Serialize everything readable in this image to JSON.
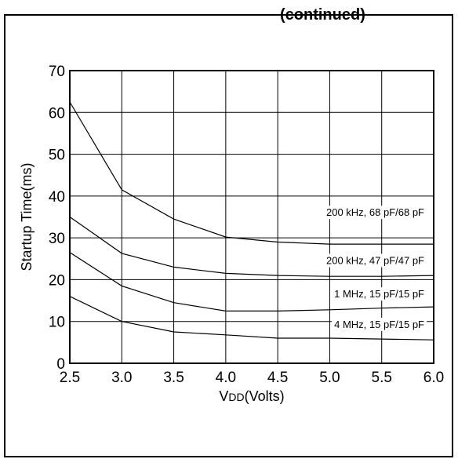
{
  "header": {
    "partial_text": "(continued)"
  },
  "chart_data": {
    "type": "line",
    "title": "",
    "xlabel": "VDD(Volts)",
    "xlabel_main": "V",
    "xlabel_sub": "DD",
    "xlabel_rest": "(Volts)",
    "ylabel": "Startup Time(ms)",
    "xlim": [
      2.5,
      6.0
    ],
    "ylim": [
      0,
      70
    ],
    "xticks": [
      2.5,
      3.0,
      3.5,
      4.0,
      4.5,
      5.0,
      5.5,
      6.0
    ],
    "xtick_labels": [
      "2.5",
      "3.0",
      "3.5",
      "4.0",
      "4.5",
      "5.0",
      "5.5",
      "6.0"
    ],
    "yticks": [
      0,
      10,
      20,
      30,
      40,
      50,
      60,
      70
    ],
    "ytick_labels": [
      "0",
      "10",
      "20",
      "30",
      "40",
      "50",
      "60",
      "70"
    ],
    "grid": true,
    "series": [
      {
        "name": "200 kHz, 68 pF/68 pF",
        "x": [
          2.5,
          3.0,
          3.5,
          4.0,
          4.5,
          5.0,
          5.5,
          6.0
        ],
        "y": [
          62.5,
          41.5,
          34.5,
          30.2,
          29.0,
          28.5,
          28.5,
          28.5
        ]
      },
      {
        "name": "200 kHz, 47 pF/47 pF",
        "x": [
          2.5,
          3.0,
          3.5,
          4.0,
          4.5,
          5.0,
          5.5,
          6.0
        ],
        "y": [
          35.0,
          26.3,
          23.0,
          21.5,
          21.0,
          20.8,
          20.8,
          21.0
        ]
      },
      {
        "name": "1 MHz, 15 pF/15 pF",
        "x": [
          2.5,
          3.0,
          3.5,
          4.0,
          4.5,
          5.0,
          5.5,
          6.0
        ],
        "y": [
          26.5,
          18.5,
          14.5,
          12.5,
          12.5,
          12.8,
          13.2,
          13.5
        ]
      },
      {
        "name": "4 MHz, 15 pF/15 pF",
        "x": [
          2.5,
          3.0,
          3.5,
          4.0,
          4.5,
          5.0,
          5.5,
          6.0
        ],
        "y": [
          16.0,
          10.0,
          7.5,
          6.8,
          6.0,
          6.0,
          5.8,
          5.6
        ]
      }
    ],
    "label_y": [
      36,
      24.5,
      16.5,
      9.2
    ]
  }
}
